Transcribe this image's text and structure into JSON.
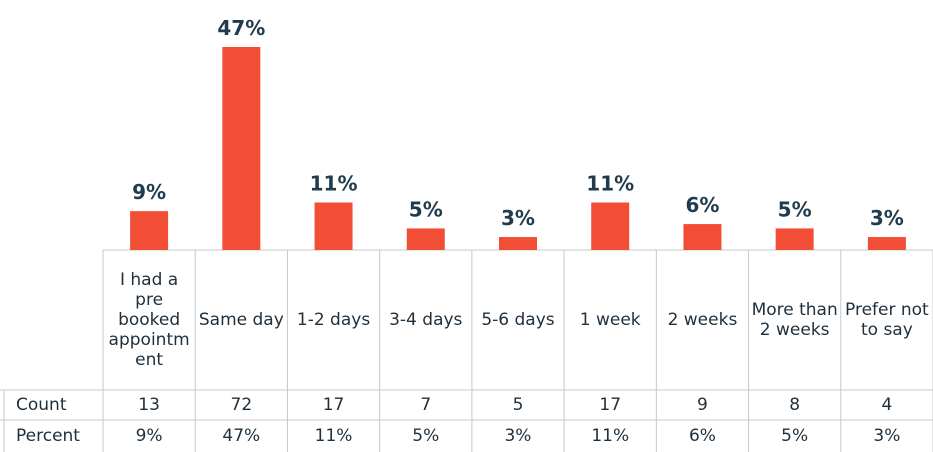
{
  "chart_data": {
    "type": "bar",
    "categories": [
      "I had a pre booked appointment",
      "Same day",
      "1-2 days",
      "3-4 days",
      "5-6 days",
      "1 week",
      "2 weeks",
      "More than 2 weeks",
      "Prefer not to say"
    ],
    "values": [
      9,
      47,
      11,
      5,
      3,
      11,
      6,
      5,
      3
    ],
    "value_labels": [
      "9%",
      "47%",
      "11%",
      "5%",
      "3%",
      "11%",
      "6%",
      "5%",
      "3%"
    ],
    "color": "#f24e36",
    "table": {
      "row_labels": [
        "Count",
        "Percent"
      ],
      "count": [
        13,
        72,
        17,
        7,
        5,
        17,
        9,
        8,
        4
      ]
    }
  }
}
